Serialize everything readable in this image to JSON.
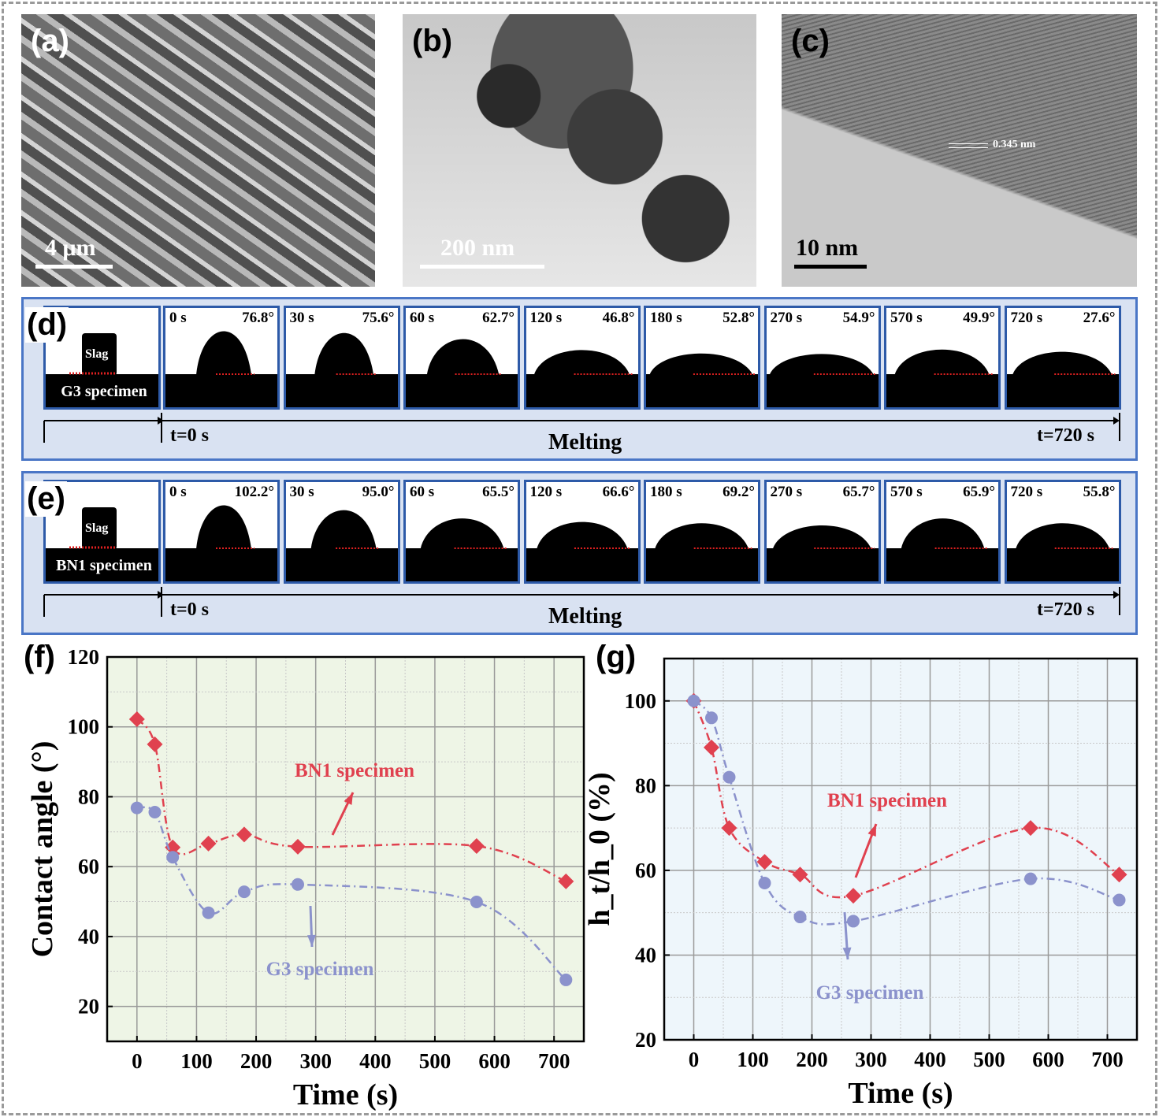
{
  "panels": {
    "a": {
      "label": "(a)",
      "scale": "4 μm"
    },
    "b": {
      "label": "(b)",
      "scale": "200 nm"
    },
    "c": {
      "label": "(c)",
      "scale": "10 nm",
      "lattice": "0.345 nm"
    }
  },
  "d": {
    "label": "(d)",
    "specimen": "G3 specimen",
    "slag": "Slag",
    "start": "t=0 s",
    "melting": "Melting",
    "end": "t=720 s",
    "frames": [
      {
        "t": "0 s",
        "angle": "76.8°"
      },
      {
        "t": "30 s",
        "angle": "75.6°"
      },
      {
        "t": "60 s",
        "angle": "62.7°"
      },
      {
        "t": "120 s",
        "angle": "46.8°"
      },
      {
        "t": "180 s",
        "angle": "52.8°"
      },
      {
        "t": "270 s",
        "angle": "54.9°"
      },
      {
        "t": "570 s",
        "angle": "49.9°"
      },
      {
        "t": "720 s",
        "angle": "27.6°"
      }
    ]
  },
  "e": {
    "label": "(e)",
    "specimen": "BN1 specimen",
    "slag": "Slag",
    "start": "t=0 s",
    "melting": "Melting",
    "end": "t=720 s",
    "frames": [
      {
        "t": "0 s",
        "angle": "102.2°"
      },
      {
        "t": "30 s",
        "angle": "95.0°"
      },
      {
        "t": "60 s",
        "angle": "65.5°"
      },
      {
        "t": "120 s",
        "angle": "66.6°"
      },
      {
        "t": "180 s",
        "angle": "69.2°"
      },
      {
        "t": "270 s",
        "angle": "65.7°"
      },
      {
        "t": "570 s",
        "angle": "65.9°"
      },
      {
        "t": "720 s",
        "angle": "55.8°"
      }
    ]
  },
  "colors": {
    "bn1": "#e0414f",
    "g3": "#8b92cc",
    "panel_bg": "#d9e2f2",
    "panel_border": "#4a76c6"
  },
  "chart_data": [
    {
      "type": "line",
      "label": "(f)",
      "xlabel": "Time (s)",
      "ylabel": "Contact angle (°)",
      "xlim": [
        -50,
        750
      ],
      "ylim": [
        10,
        120
      ],
      "xticks": [
        0,
        100,
        200,
        300,
        400,
        500,
        600,
        700
      ],
      "yticks": [
        20,
        40,
        60,
        80,
        100,
        120
      ],
      "grid": true,
      "x": [
        0,
        30,
        60,
        120,
        180,
        270,
        570,
        720
      ],
      "series": [
        {
          "name": "BN1 specimen",
          "marker": "diamond",
          "values": [
            102.2,
            95.0,
            65.5,
            66.6,
            69.2,
            65.7,
            65.9,
            55.8
          ]
        },
        {
          "name": "G3 specimen",
          "marker": "circle",
          "values": [
            76.8,
            75.6,
            62.7,
            46.8,
            52.8,
            54.9,
            49.9,
            27.6
          ]
        }
      ]
    },
    {
      "type": "line",
      "label": "(g)",
      "xlabel": "Time (s)",
      "ylabel": "h_t/h_0 (%)",
      "xlim": [
        -50,
        750
      ],
      "ylim": [
        20,
        110
      ],
      "xticks": [
        0,
        100,
        200,
        300,
        400,
        500,
        600,
        700
      ],
      "yticks": [
        20,
        40,
        60,
        80,
        100
      ],
      "grid": true,
      "x": [
        0,
        30,
        60,
        120,
        180,
        270,
        570,
        720
      ],
      "series": [
        {
          "name": "BN1 specimen",
          "marker": "diamond",
          "values": [
            100,
            89,
            70,
            62,
            59,
            54,
            70,
            59
          ]
        },
        {
          "name": "G3 specimen",
          "marker": "circle",
          "values": [
            100,
            96,
            82,
            57,
            49,
            48,
            58,
            53
          ]
        }
      ]
    }
  ]
}
